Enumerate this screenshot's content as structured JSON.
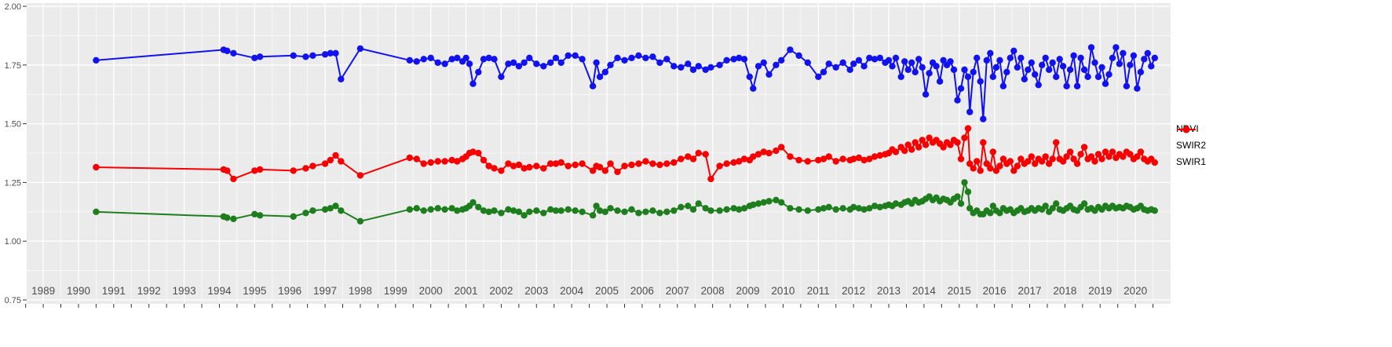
{
  "figure": {
    "background": "#FFFFFF",
    "panel_background": "#EBEBEB",
    "grid_color": "#FFFFFF",
    "axis_text_color": "#4D4D4D",
    "tick_mark_color": "#333333"
  },
  "legend": {
    "items": [
      {
        "label": "NDVI",
        "color": "#1212EE"
      },
      {
        "label": "SWIR2",
        "color": "#1E7E1E"
      },
      {
        "label": "SWIR1",
        "color": "#F80000"
      }
    ]
  },
  "chart_data": {
    "type": "line",
    "title": "",
    "xlabel": "",
    "ylabel": "",
    "xlim": [
      1988.53,
      2021.0
    ],
    "ylim": [
      0.75,
      2.0
    ],
    "x_ticks": [
      1989,
      1990,
      1991,
      1992,
      1993,
      1994,
      1995,
      1996,
      1997,
      1998,
      1999,
      2000,
      2001,
      2002,
      2003,
      2004,
      2005,
      2006,
      2007,
      2008,
      2009,
      2010,
      2011,
      2012,
      2013,
      2014,
      2015,
      2016,
      2017,
      2018,
      2019,
      2020
    ],
    "y_ticks": [
      "2.00",
      "1.75",
      "1.50",
      "1.25",
      "1.00",
      "0.75"
    ],
    "y_tick_values": [
      2.0,
      1.75,
      1.5,
      1.25,
      1.0,
      0.75
    ],
    "grid": true,
    "legend_position": "right",
    "marker_radius": 4.2,
    "line_width": 2,
    "columns": [
      "year",
      "NDVI",
      "SWIR1",
      "SWIR2"
    ],
    "series": [
      {
        "name": "NDVI",
        "color": "#1212EE",
        "column": 1
      },
      {
        "name": "SWIR1",
        "color": "#F80000",
        "column": 2
      },
      {
        "name": "SWIR2",
        "color": "#1E7E1E",
        "column": 3
      }
    ],
    "rows": [
      [
        1990.5,
        1.77,
        1.315,
        1.125
      ],
      [
        1994.12,
        1.815,
        1.305,
        1.105
      ],
      [
        1994.22,
        1.81,
        1.3,
        1.1
      ],
      [
        1994.4,
        1.8,
        1.265,
        1.095
      ],
      [
        1995.0,
        1.78,
        1.3,
        1.115
      ],
      [
        1995.15,
        1.785,
        1.305,
        1.11
      ],
      [
        1996.1,
        1.79,
        1.3,
        1.105
      ],
      [
        1996.45,
        1.785,
        1.31,
        1.12
      ],
      [
        1996.65,
        1.79,
        1.32,
        1.13
      ],
      [
        1997.0,
        1.795,
        1.33,
        1.135
      ],
      [
        1997.15,
        1.8,
        1.345,
        1.14
      ],
      [
        1997.3,
        1.8,
        1.365,
        1.15
      ],
      [
        1997.45,
        1.69,
        1.34,
        1.13
      ],
      [
        1998.0,
        1.82,
        1.28,
        1.085
      ],
      [
        1999.4,
        1.77,
        1.355,
        1.135
      ],
      [
        1999.6,
        1.765,
        1.35,
        1.14
      ],
      [
        1999.8,
        1.775,
        1.33,
        1.13
      ],
      [
        2000.0,
        1.78,
        1.335,
        1.135
      ],
      [
        2000.2,
        1.76,
        1.34,
        1.14
      ],
      [
        2000.4,
        1.755,
        1.34,
        1.135
      ],
      [
        2000.6,
        1.775,
        1.345,
        1.14
      ],
      [
        2000.75,
        1.78,
        1.34,
        1.13
      ],
      [
        2000.9,
        1.765,
        1.35,
        1.135
      ],
      [
        2001.0,
        1.78,
        1.36,
        1.14
      ],
      [
        2001.1,
        1.755,
        1.375,
        1.15
      ],
      [
        2001.2,
        1.67,
        1.38,
        1.165
      ],
      [
        2001.35,
        1.72,
        1.375,
        1.145
      ],
      [
        2001.5,
        1.775,
        1.345,
        1.13
      ],
      [
        2001.65,
        1.78,
        1.32,
        1.125
      ],
      [
        2001.8,
        1.775,
        1.31,
        1.13
      ],
      [
        2002.0,
        1.7,
        1.3,
        1.12
      ],
      [
        2002.2,
        1.755,
        1.33,
        1.135
      ],
      [
        2002.35,
        1.76,
        1.32,
        1.13
      ],
      [
        2002.5,
        1.745,
        1.325,
        1.125
      ],
      [
        2002.65,
        1.76,
        1.31,
        1.11
      ],
      [
        2002.8,
        1.78,
        1.315,
        1.125
      ],
      [
        2003.0,
        1.755,
        1.32,
        1.13
      ],
      [
        2003.2,
        1.745,
        1.31,
        1.12
      ],
      [
        2003.4,
        1.76,
        1.33,
        1.135
      ],
      [
        2003.55,
        1.78,
        1.33,
        1.13
      ],
      [
        2003.7,
        1.76,
        1.335,
        1.13
      ],
      [
        2003.9,
        1.79,
        1.32,
        1.135
      ],
      [
        2004.1,
        1.79,
        1.325,
        1.13
      ],
      [
        2004.3,
        1.775,
        1.33,
        1.125
      ],
      [
        2004.6,
        1.66,
        1.3,
        1.11
      ],
      [
        2004.7,
        1.76,
        1.32,
        1.15
      ],
      [
        2004.8,
        1.7,
        1.315,
        1.13
      ],
      [
        2004.95,
        1.72,
        1.3,
        1.125
      ],
      [
        2005.1,
        1.75,
        1.33,
        1.14
      ],
      [
        2005.3,
        1.78,
        1.295,
        1.13
      ],
      [
        2005.5,
        1.77,
        1.32,
        1.125
      ],
      [
        2005.7,
        1.78,
        1.325,
        1.135
      ],
      [
        2005.9,
        1.79,
        1.33,
        1.12
      ],
      [
        2006.1,
        1.78,
        1.34,
        1.125
      ],
      [
        2006.3,
        1.785,
        1.33,
        1.13
      ],
      [
        2006.5,
        1.76,
        1.325,
        1.12
      ],
      [
        2006.7,
        1.775,
        1.33,
        1.125
      ],
      [
        2006.9,
        1.745,
        1.335,
        1.13
      ],
      [
        2007.1,
        1.74,
        1.35,
        1.145
      ],
      [
        2007.3,
        1.755,
        1.36,
        1.15
      ],
      [
        2007.45,
        1.73,
        1.35,
        1.135
      ],
      [
        2007.6,
        1.745,
        1.375,
        1.16
      ],
      [
        2007.8,
        1.73,
        1.37,
        1.14
      ],
      [
        2007.95,
        1.74,
        1.265,
        1.13
      ],
      [
        2008.2,
        1.75,
        1.32,
        1.13
      ],
      [
        2008.4,
        1.77,
        1.33,
        1.135
      ],
      [
        2008.6,
        1.775,
        1.335,
        1.14
      ],
      [
        2008.75,
        1.78,
        1.34,
        1.135
      ],
      [
        2008.9,
        1.775,
        1.35,
        1.14
      ],
      [
        2009.05,
        1.7,
        1.345,
        1.15
      ],
      [
        2009.15,
        1.65,
        1.36,
        1.155
      ],
      [
        2009.3,
        1.745,
        1.37,
        1.16
      ],
      [
        2009.45,
        1.76,
        1.38,
        1.165
      ],
      [
        2009.6,
        1.71,
        1.375,
        1.17
      ],
      [
        2009.8,
        1.75,
        1.385,
        1.175
      ],
      [
        2009.95,
        1.77,
        1.4,
        1.165
      ],
      [
        2010.2,
        1.815,
        1.36,
        1.14
      ],
      [
        2010.45,
        1.79,
        1.345,
        1.135
      ],
      [
        2010.7,
        1.76,
        1.34,
        1.13
      ],
      [
        2011.0,
        1.7,
        1.345,
        1.135
      ],
      [
        2011.15,
        1.72,
        1.35,
        1.14
      ],
      [
        2011.3,
        1.755,
        1.36,
        1.145
      ],
      [
        2011.5,
        1.74,
        1.34,
        1.135
      ],
      [
        2011.7,
        1.76,
        1.35,
        1.14
      ],
      [
        2011.9,
        1.73,
        1.345,
        1.135
      ],
      [
        2012.0,
        1.755,
        1.35,
        1.145
      ],
      [
        2012.15,
        1.77,
        1.355,
        1.14
      ],
      [
        2012.3,
        1.745,
        1.345,
        1.135
      ],
      [
        2012.45,
        1.78,
        1.35,
        1.14
      ],
      [
        2012.6,
        1.775,
        1.36,
        1.15
      ],
      [
        2012.75,
        1.78,
        1.365,
        1.145
      ],
      [
        2012.9,
        1.76,
        1.37,
        1.15
      ],
      [
        2013.0,
        1.77,
        1.375,
        1.155
      ],
      [
        2013.1,
        1.745,
        1.39,
        1.15
      ],
      [
        2013.2,
        1.78,
        1.38,
        1.16
      ],
      [
        2013.35,
        1.7,
        1.4,
        1.155
      ],
      [
        2013.45,
        1.765,
        1.385,
        1.165
      ],
      [
        2013.55,
        1.73,
        1.41,
        1.17
      ],
      [
        2013.65,
        1.76,
        1.39,
        1.16
      ],
      [
        2013.75,
        1.72,
        1.42,
        1.175
      ],
      [
        2013.85,
        1.775,
        1.4,
        1.165
      ],
      [
        2013.95,
        1.74,
        1.43,
        1.17
      ],
      [
        2014.05,
        1.625,
        1.41,
        1.18
      ],
      [
        2014.15,
        1.715,
        1.44,
        1.19
      ],
      [
        2014.25,
        1.76,
        1.42,
        1.175
      ],
      [
        2014.35,
        1.745,
        1.43,
        1.185
      ],
      [
        2014.45,
        1.68,
        1.415,
        1.17
      ],
      [
        2014.55,
        1.77,
        1.4,
        1.18
      ],
      [
        2014.65,
        1.75,
        1.42,
        1.175
      ],
      [
        2014.75,
        1.765,
        1.41,
        1.165
      ],
      [
        2014.85,
        1.73,
        1.43,
        1.18
      ],
      [
        2014.95,
        1.6,
        1.42,
        1.19
      ],
      [
        2015.05,
        1.65,
        1.35,
        1.16
      ],
      [
        2015.15,
        1.73,
        1.44,
        1.25
      ],
      [
        2015.25,
        1.7,
        1.48,
        1.21
      ],
      [
        2015.3,
        1.55,
        1.33,
        1.14
      ],
      [
        2015.4,
        1.72,
        1.31,
        1.12
      ],
      [
        2015.5,
        1.78,
        1.34,
        1.13
      ],
      [
        2015.6,
        1.68,
        1.3,
        1.115
      ],
      [
        2015.68,
        1.52,
        1.42,
        1.115
      ],
      [
        2015.78,
        1.77,
        1.33,
        1.13
      ],
      [
        2015.88,
        1.8,
        1.31,
        1.12
      ],
      [
        2015.96,
        1.7,
        1.38,
        1.15
      ],
      [
        2016.05,
        1.74,
        1.3,
        1.13
      ],
      [
        2016.15,
        1.77,
        1.32,
        1.12
      ],
      [
        2016.25,
        1.66,
        1.35,
        1.14
      ],
      [
        2016.35,
        1.72,
        1.33,
        1.13
      ],
      [
        2016.45,
        1.78,
        1.34,
        1.135
      ],
      [
        2016.55,
        1.81,
        1.3,
        1.12
      ],
      [
        2016.65,
        1.74,
        1.32,
        1.13
      ],
      [
        2016.75,
        1.78,
        1.35,
        1.14
      ],
      [
        2016.85,
        1.69,
        1.33,
        1.125
      ],
      [
        2016.95,
        1.73,
        1.34,
        1.13
      ],
      [
        2017.05,
        1.76,
        1.36,
        1.14
      ],
      [
        2017.15,
        1.71,
        1.33,
        1.13
      ],
      [
        2017.25,
        1.665,
        1.35,
        1.14
      ],
      [
        2017.35,
        1.75,
        1.34,
        1.135
      ],
      [
        2017.45,
        1.78,
        1.36,
        1.15
      ],
      [
        2017.55,
        1.73,
        1.33,
        1.125
      ],
      [
        2017.65,
        1.76,
        1.35,
        1.14
      ],
      [
        2017.75,
        1.7,
        1.42,
        1.16
      ],
      [
        2017.85,
        1.775,
        1.35,
        1.135
      ],
      [
        2017.95,
        1.745,
        1.34,
        1.13
      ],
      [
        2018.05,
        1.66,
        1.36,
        1.14
      ],
      [
        2018.15,
        1.73,
        1.38,
        1.15
      ],
      [
        2018.25,
        1.79,
        1.35,
        1.135
      ],
      [
        2018.35,
        1.66,
        1.33,
        1.13
      ],
      [
        2018.45,
        1.78,
        1.37,
        1.145
      ],
      [
        2018.55,
        1.73,
        1.4,
        1.16
      ],
      [
        2018.65,
        1.7,
        1.35,
        1.135
      ],
      [
        2018.75,
        1.825,
        1.36,
        1.14
      ],
      [
        2018.85,
        1.76,
        1.34,
        1.13
      ],
      [
        2018.95,
        1.7,
        1.37,
        1.145
      ],
      [
        2019.05,
        1.74,
        1.35,
        1.135
      ],
      [
        2019.15,
        1.67,
        1.38,
        1.15
      ],
      [
        2019.25,
        1.71,
        1.36,
        1.14
      ],
      [
        2019.35,
        1.78,
        1.38,
        1.15
      ],
      [
        2019.45,
        1.825,
        1.355,
        1.14
      ],
      [
        2019.55,
        1.755,
        1.37,
        1.145
      ],
      [
        2019.65,
        1.8,
        1.36,
        1.14
      ],
      [
        2019.75,
        1.66,
        1.38,
        1.15
      ],
      [
        2019.85,
        1.75,
        1.37,
        1.145
      ],
      [
        2019.95,
        1.79,
        1.35,
        1.135
      ],
      [
        2020.05,
        1.65,
        1.36,
        1.14
      ],
      [
        2020.15,
        1.72,
        1.38,
        1.15
      ],
      [
        2020.25,
        1.775,
        1.35,
        1.135
      ],
      [
        2020.35,
        1.8,
        1.34,
        1.13
      ],
      [
        2020.45,
        1.745,
        1.35,
        1.135
      ],
      [
        2020.55,
        1.78,
        1.335,
        1.13
      ]
    ]
  }
}
